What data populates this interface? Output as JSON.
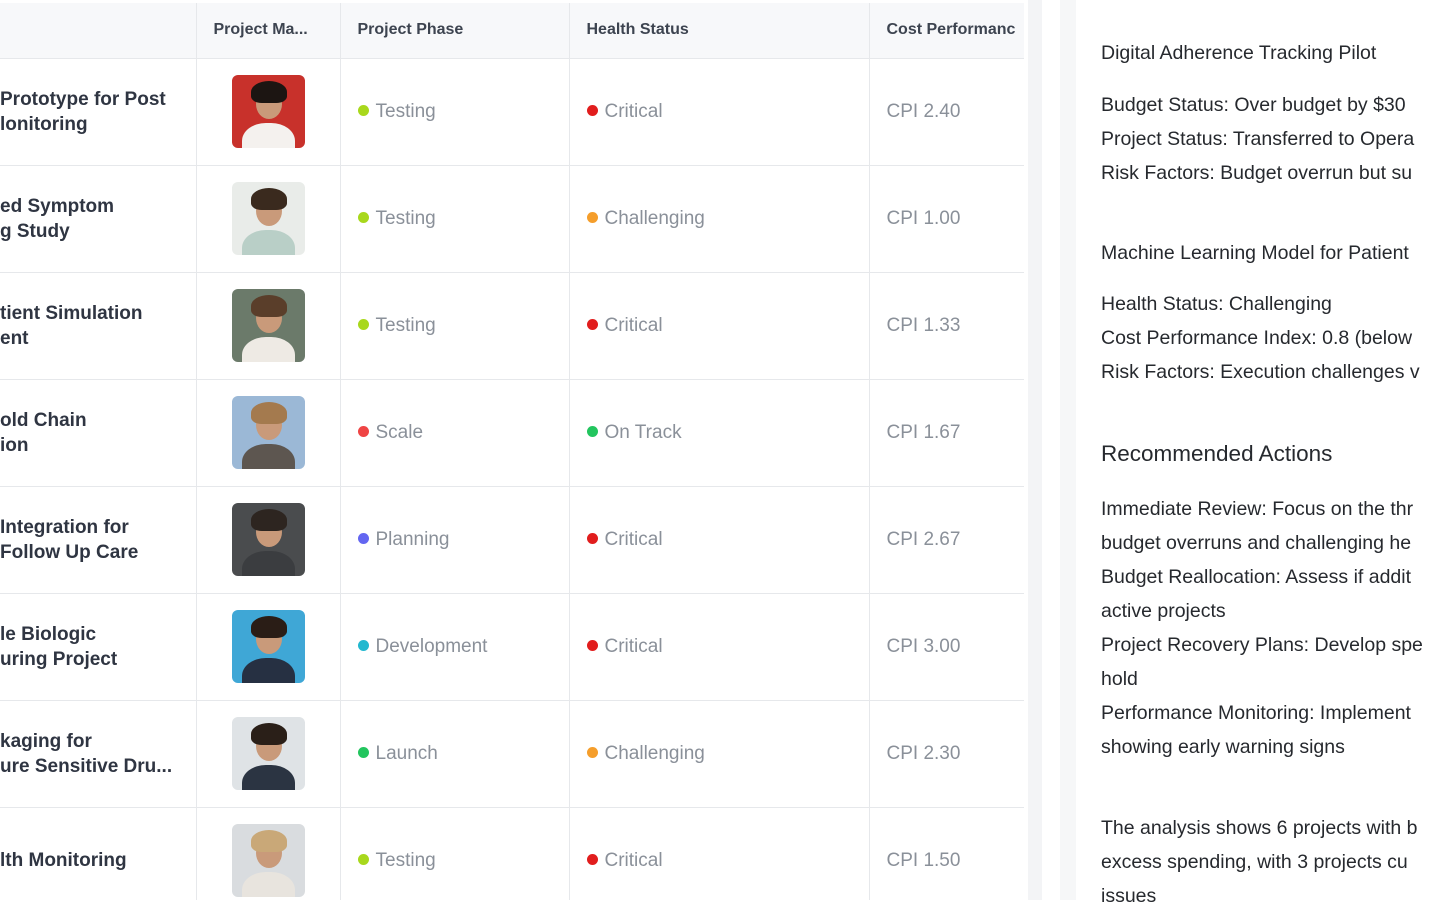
{
  "table": {
    "columns": [
      "",
      "Project Ma...",
      "Project Phase",
      "Health Status",
      "Cost Performanc"
    ],
    "rows": [
      {
        "name": [
          "Prototype for Post",
          "lonitoring"
        ],
        "avatar_colors": [
          "#c8312b",
          "#1c1512",
          "#f4f1ee"
        ],
        "phase": "Testing",
        "phase_color": "#a8d81c",
        "health": "Critical",
        "health_color": "#e11d1d",
        "cpi": "CPI 2.40"
      },
      {
        "name": [
          "ed Symptom",
          "g Study"
        ],
        "avatar_colors": [
          "#e9ece9",
          "#3a2a1e",
          "#b9cfc7"
        ],
        "phase": "Testing",
        "phase_color": "#a8d81c",
        "health": "Challenging",
        "health_color": "#f59e2b",
        "cpi": "CPI 1.00"
      },
      {
        "name": [
          "tient Simulation",
          "ent"
        ],
        "avatar_colors": [
          "#6b7a6a",
          "#5a3e2a",
          "#eeeae4"
        ],
        "phase": "Testing",
        "phase_color": "#a8d81c",
        "health": "Critical",
        "health_color": "#e11d1d",
        "cpi": "CPI 1.33"
      },
      {
        "name": [
          "old Chain",
          "ion"
        ],
        "avatar_colors": [
          "#9bb8d6",
          "#a47a4e",
          "#5d5650"
        ],
        "phase": "Scale",
        "phase_color": "#ef4444",
        "health": "On Track",
        "health_color": "#22c55e",
        "cpi": "CPI 1.67"
      },
      {
        "name": [
          "Integration for",
          "Follow Up Care"
        ],
        "avatar_colors": [
          "#4a4c4e",
          "#2d2520",
          "#3b3d40"
        ],
        "phase": "Planning",
        "phase_color": "#6366f1",
        "health": "Critical",
        "health_color": "#e11d1d",
        "cpi": "CPI 2.67"
      },
      {
        "name": [
          "le Biologic",
          "uring Project"
        ],
        "avatar_colors": [
          "#3fa7d6",
          "#2a1d16",
          "#263042"
        ],
        "phase": "Development",
        "phase_color": "#22b8cf",
        "health": "Critical",
        "health_color": "#e11d1d",
        "cpi": "CPI 3.00"
      },
      {
        "name": [
          "kaging for",
          "ure Sensitive Dru..."
        ],
        "avatar_colors": [
          "#dfe3e6",
          "#2a1f18",
          "#2b3442"
        ],
        "phase": "Launch",
        "phase_color": "#22c55e",
        "health": "Challenging",
        "health_color": "#f59e2b",
        "cpi": "CPI 2.30"
      },
      {
        "name": [
          "lth Monitoring",
          ""
        ],
        "avatar_colors": [
          "#d9dcdf",
          "#c9a878",
          "#e8e4de"
        ],
        "phase": "Testing",
        "phase_color": "#a8d81c",
        "health": "Critical",
        "health_color": "#e11d1d",
        "cpi": "CPI 1.50"
      }
    ]
  },
  "panel": {
    "project1_title": "Digital Adherence Tracking Pilot",
    "project1_budget": "Budget Status: Over budget by $30",
    "project1_status": "Project Status: Transferred to Opera",
    "project1_risk": "Risk Factors: Budget overrun but su",
    "project2_title": "Machine Learning Model for Patient",
    "project2_health": "Health Status: Challenging",
    "project2_cpi": "Cost Performance Index: 0.8 (below",
    "project2_risk": "Risk Factors: Execution challenges v",
    "actions_heading": "Recommended Actions",
    "actions": [
      "Immediate Review: Focus on the thr",
      "budget overruns and challenging he",
      "Budget Reallocation: Assess if addit",
      "active projects",
      "Project Recovery Plans: Develop spe",
      "hold",
      "Performance Monitoring: Implement",
      "showing early warning signs"
    ],
    "summary": [
      "The analysis shows 6 projects with b",
      "excess spending, with 3 projects cu",
      "issues"
    ]
  }
}
